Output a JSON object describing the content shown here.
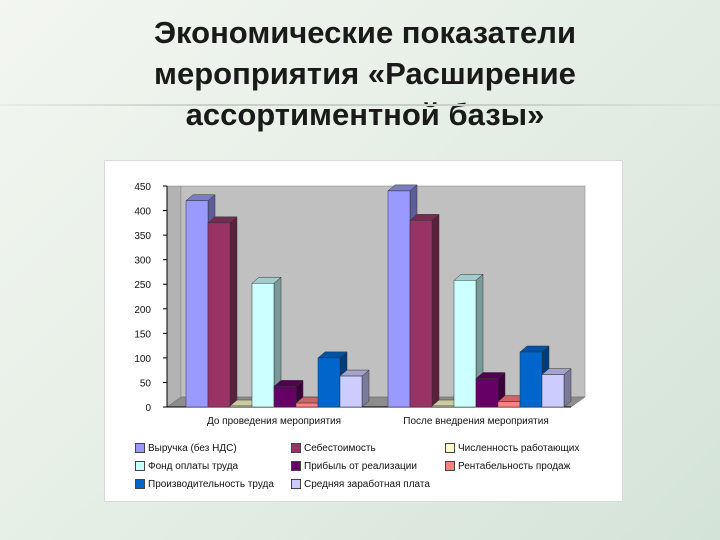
{
  "slide": {
    "title_lines": [
      "Экономические показатели",
      "мероприятия «Расширение",
      "ассортиментной базы»"
    ]
  },
  "chart_data": {
    "type": "bar",
    "title": "",
    "xlabel": "",
    "ylabel": "",
    "ylim": [
      0,
      450
    ],
    "ytick_step": 50,
    "grid": false,
    "legend_position": "bottom",
    "categories": [
      "До проведения мероприятия",
      "После внедрения мероприятия"
    ],
    "series": [
      {
        "name": "Выручка (без НДС)",
        "color": "#9999ff",
        "values": [
          420,
          440
        ]
      },
      {
        "name": "Себестоимость",
        "color": "#993366",
        "values": [
          375,
          380
        ]
      },
      {
        "name": "Численность работающих",
        "color": "#ffffcc",
        "values": [
          2,
          2
        ]
      },
      {
        "name": "Фонд оплаты труда",
        "color": "#ccffff",
        "values": [
          252,
          258
        ]
      },
      {
        "name": "Прибыль от реализации",
        "color": "#660066",
        "values": [
          42,
          58
        ]
      },
      {
        "name": "Рентабельность продаж",
        "color": "#ff8080",
        "values": [
          8,
          11
        ]
      },
      {
        "name": "Производительность труда",
        "color": "#0066cc",
        "values": [
          100,
          112
        ]
      },
      {
        "name": "Средняя заработная плата",
        "color": "#ccccff",
        "values": [
          63,
          66
        ]
      }
    ]
  }
}
